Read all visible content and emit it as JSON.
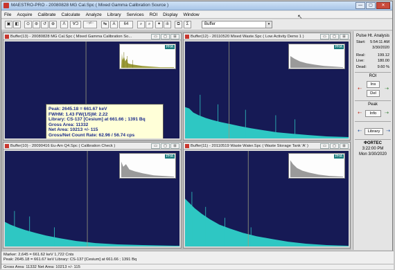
{
  "window": {
    "title": "MAESTRO-PRO - 20080828 MG Cal.Spc ( Mixed Gamma Calibration Source )",
    "buttons": [
      "—",
      "▢",
      "✕"
    ]
  },
  "menu": [
    "File",
    "Acquire",
    "Calibrate",
    "Calculate",
    "Analyze",
    "Library",
    "Services",
    "ROI",
    "Display",
    "Window"
  ],
  "toolbar": {
    "buttons": [
      "▣",
      "◧",
      "⊙",
      "⊛",
      "↺",
      "⊕",
      "Ʌ",
      "ⱯƆ",
      "⁻⁵⁰⁻",
      "↹",
      "A",
      "64",
      "⌕",
      "⌕",
      "✦",
      "ılı",
      "⧉",
      "Σ"
    ],
    "buffer_value": "Buffer",
    "buffer_arrow": "▾"
  },
  "spectra": [
    {
      "title": "Buffer(13) - 20080828 MG Cal.Spc ( Mixed Gamma Calibration So...",
      "inset_label": "PHA"
    },
    {
      "title": "Buffer(12) - 20110520 Mixed Waste.Spc ( Low Activity Demo 1 )",
      "inset_label": "PHA"
    },
    {
      "title": "Buffer(10) - 20090416 Eu-Am Q4.Spc ( Calibration Check )",
      "inset_label": "PHA"
    },
    {
      "title": "Buffer(11) - 20110519 Waste Water.Spc ( Waste Storage Tank 'A' )",
      "inset_label": "PHA"
    }
  ],
  "window_controls": [
    "▭",
    "▢",
    "⊟"
  ],
  "peak_info": {
    "peak": "Peak: 2645.18 = 661.67 keV",
    "fwhm": "FWHM: 1.43  FW(1/5)M: 2.22",
    "library": "Library: CS-137 [Cesium] at 661.66 ; 1391 Bq",
    "gross_area": "Gross Area: 11332",
    "net_area": "Net Area: 10213 +/- 115",
    "rate": "Gross/Net Count Rate: 62.96 / 56.74 cps"
  },
  "side_panel": {
    "header": "Pulse Ht. Analysis",
    "start_label": "Start:",
    "start_time": "5:54:11 AM",
    "start_date": "3/30/2020",
    "real_label": "Real:",
    "real_value": "199.12",
    "live_label": "Live:",
    "live_value": "180.00",
    "dead_label": "Dead:",
    "dead_value": "9.60  %",
    "roi_label": "ROI",
    "ins_button": "Ins",
    "del_button": "Del",
    "peak_label": "Peak",
    "info_button": "Info",
    "library_button": "Library",
    "vendor": "ΦORTEC",
    "clock_time": "3:22:00 PM",
    "clock_date": "Mon   3/30/2020",
    "arrow_left": "⇠",
    "arrow_right": "⇢"
  },
  "status_bar": {
    "marker": "Marker:   2,645  =          661.62  keV           1,722  Cnts",
    "peak": "Peak:  2645.18 = 661.67 keV  Library:  CS-137 [Cesium] at 661.66 ;  1391 Bq",
    "gross": "Gross Area: 11332  Net Area: 10213 +/- 115"
  },
  "colors": {
    "plot_bg": "#161a55",
    "spectrum_fill": "#2ec7c3",
    "roi_fill": "#e0391f",
    "marker_line": "#9b9c7e",
    "tooltip_text": "#1a2a8a"
  }
}
